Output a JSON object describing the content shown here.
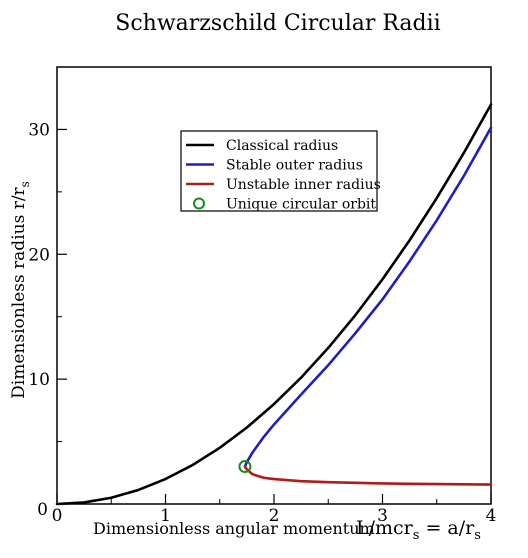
{
  "chart_data": {
    "type": "line",
    "title": "Schwarzschild Circular Radii",
    "xlabel": "Dimensionless angular momentum",
    "xlabel_formula_main": "L/mcr",
    "xlabel_formula_sub": "s",
    "xlabel_formula_eq": " = a/r",
    "xlabel_formula_sub2": "s",
    "ylabel_main": "Dimensionless radius r/r",
    "ylabel_sub": "s",
    "xlim": [
      0,
      4
    ],
    "ylim": [
      0,
      35
    ],
    "x_ticks": [
      "0",
      "1",
      "2",
      "3",
      "4"
    ],
    "y_ticks": [
      "10",
      "20",
      "30"
    ],
    "grid": false,
    "legend_position": "top-center",
    "series": [
      {
        "name": "Classical radius",
        "color": "#000000",
        "x": [
          0,
          0.25,
          0.5,
          0.75,
          1.0,
          1.25,
          1.5,
          1.75,
          2.0,
          2.25,
          2.5,
          2.75,
          3.0,
          3.25,
          3.5,
          3.75,
          4.0
        ],
        "y": [
          0,
          0.125,
          0.5,
          1.125,
          2.0,
          3.125,
          4.5,
          6.125,
          8.0,
          10.125,
          12.5,
          15.125,
          18.0,
          21.125,
          24.5,
          28.125,
          32.0
        ]
      },
      {
        "name": "Stable outer radius",
        "color": "#1f1fbf",
        "x": [
          1.732,
          1.75,
          1.8,
          1.9,
          2.0,
          2.25,
          2.5,
          2.75,
          3.0,
          3.25,
          3.5,
          3.75,
          4.0
        ],
        "y": [
          3.0,
          3.36,
          4.1,
          5.31,
          6.37,
          8.77,
          11.12,
          13.68,
          16.39,
          19.44,
          22.72,
          26.28,
          30.14
        ]
      },
      {
        "name": "Unstable inner radius",
        "color": "#b01c1c",
        "x": [
          1.732,
          1.75,
          1.8,
          1.9,
          2.0,
          2.25,
          2.5,
          2.75,
          3.0,
          3.25,
          3.5,
          3.75,
          4.0
        ],
        "y": [
          3.0,
          2.77,
          2.39,
          2.11,
          2.0,
          1.83,
          1.75,
          1.7,
          1.65,
          1.62,
          1.6,
          1.58,
          1.56
        ]
      },
      {
        "name": "Unique circular orbit",
        "color": "#1a8a1a",
        "marker": "circle",
        "x": [
          1.732
        ],
        "y": [
          3.0
        ]
      }
    ]
  }
}
